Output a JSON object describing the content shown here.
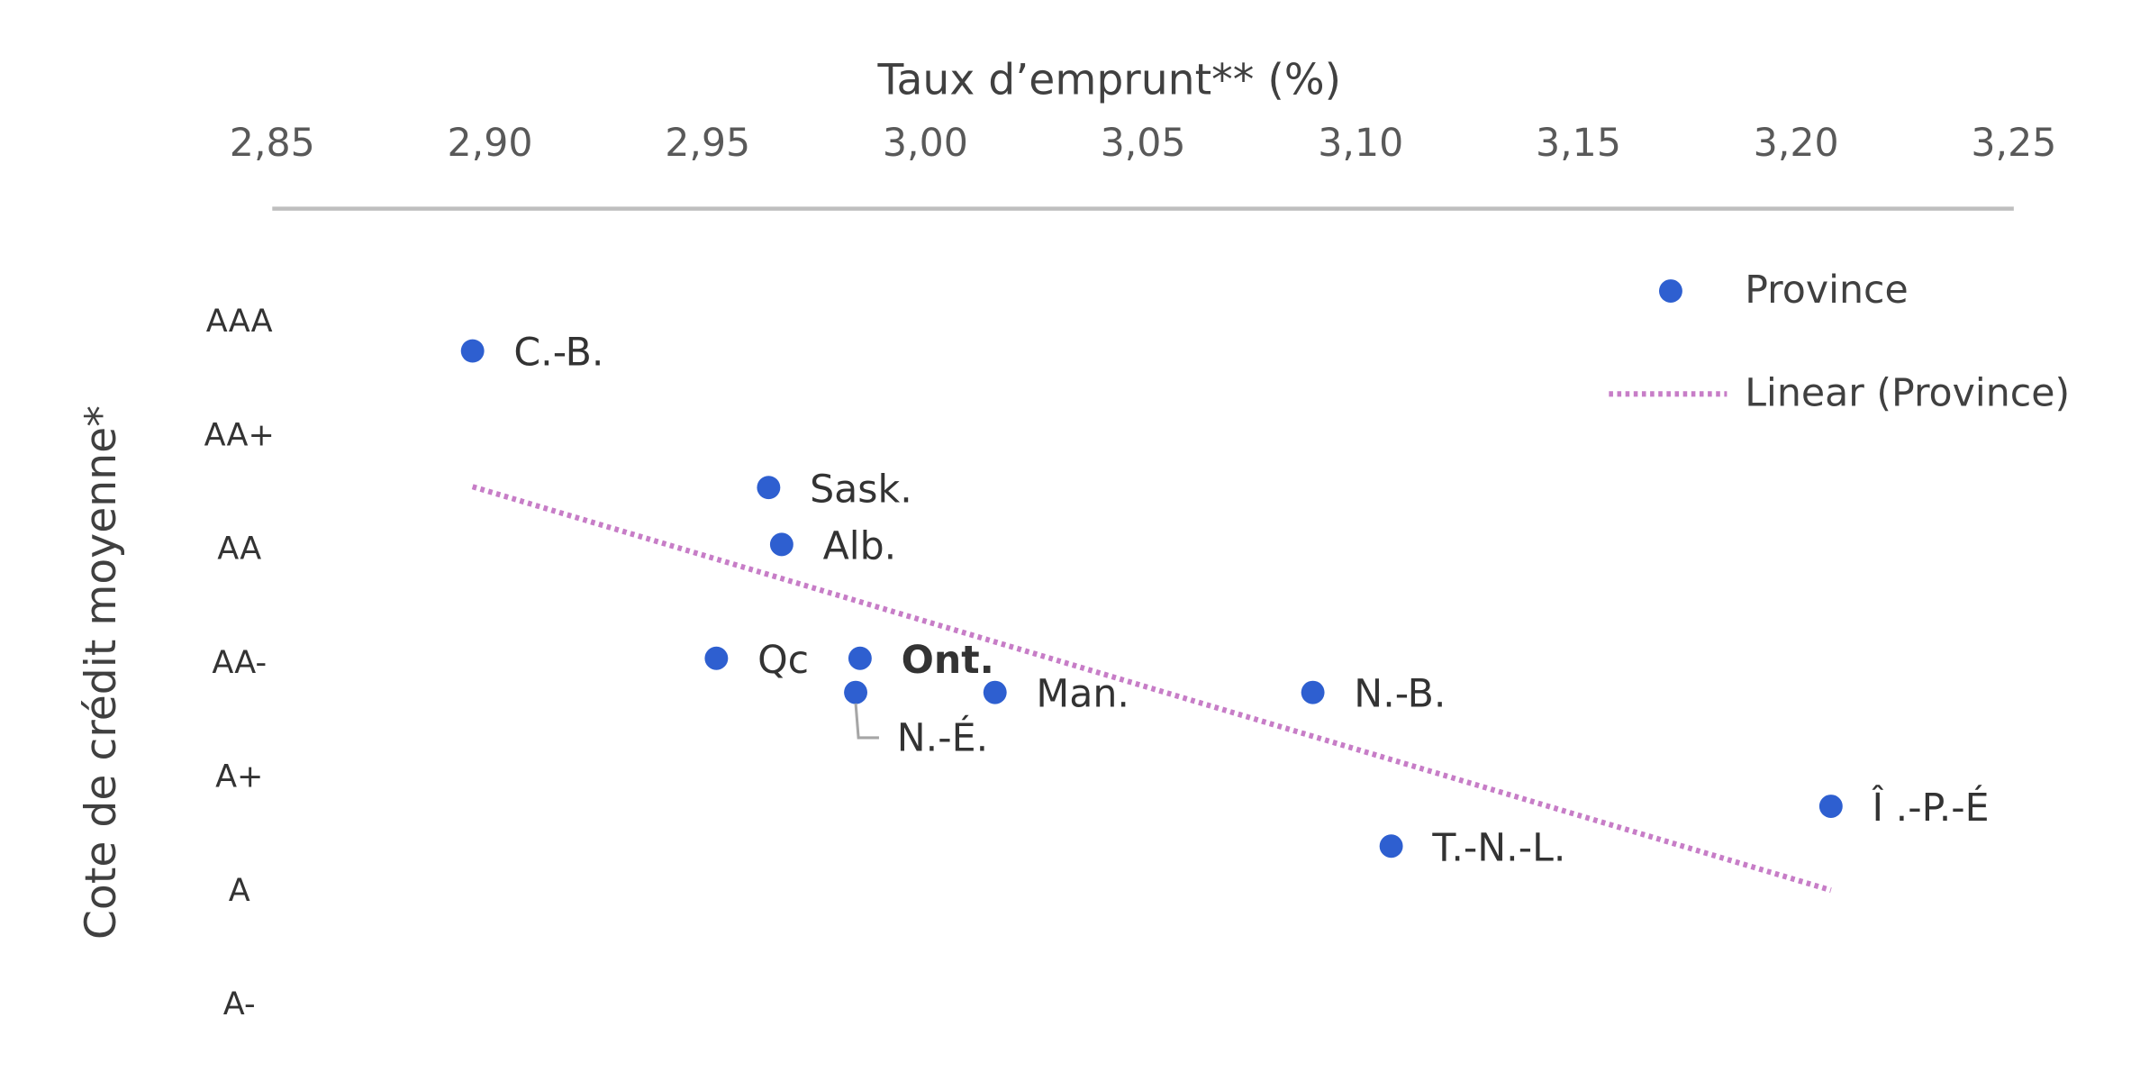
{
  "chart_data": {
    "type": "scatter",
    "x_label": "Taux d’emprunt** (%)",
    "y_label": "Cote de crédit moyenne*",
    "xlim": [
      2.85,
      3.25
    ],
    "xticks": [
      {
        "value": 2.85,
        "label": "2,85"
      },
      {
        "value": 2.9,
        "label": "2,90"
      },
      {
        "value": 2.95,
        "label": "2,95"
      },
      {
        "value": 3.0,
        "label": "3,00"
      },
      {
        "value": 3.05,
        "label": "3,05"
      },
      {
        "value": 3.1,
        "label": "3,10"
      },
      {
        "value": 3.15,
        "label": "3,15"
      },
      {
        "value": 3.2,
        "label": "3,20"
      },
      {
        "value": 3.25,
        "label": "3,25"
      }
    ],
    "ylim": [
      0.5,
      8
    ],
    "yticks": [
      {
        "value": 7,
        "label": "AAA"
      },
      {
        "value": 6,
        "label": "AA+"
      },
      {
        "value": 5,
        "label": "AA"
      },
      {
        "value": 4,
        "label": "AA-"
      },
      {
        "value": 3,
        "label": "A+"
      },
      {
        "value": 2,
        "label": "A"
      },
      {
        "value": 1,
        "label": "A-"
      }
    ],
    "series": [
      {
        "name": "Province",
        "color": "#2e5fd0",
        "x": [
          2.896,
          2.964,
          2.967,
          2.952,
          2.985,
          2.984,
          3.016,
          3.089,
          3.107,
          3.208
        ],
        "y": [
          6.75,
          5.55,
          5.05,
          4.05,
          4.05,
          3.75,
          3.75,
          3.75,
          2.4,
          2.75
        ],
        "labels": [
          "C.-B.",
          "Sask.",
          "Alb.",
          "Qc",
          "Ont.",
          "N.-É.",
          "Man.",
          "N.-B.",
          "T.-N.-L.",
          "Î .-P.-É"
        ],
        "label_bold": [
          false,
          false,
          false,
          false,
          true,
          false,
          false,
          false,
          false,
          false
        ]
      }
    ],
    "trendline": {
      "name": "Linear (Province)",
      "fit": "linear",
      "color": "#c77dc7"
    }
  }
}
